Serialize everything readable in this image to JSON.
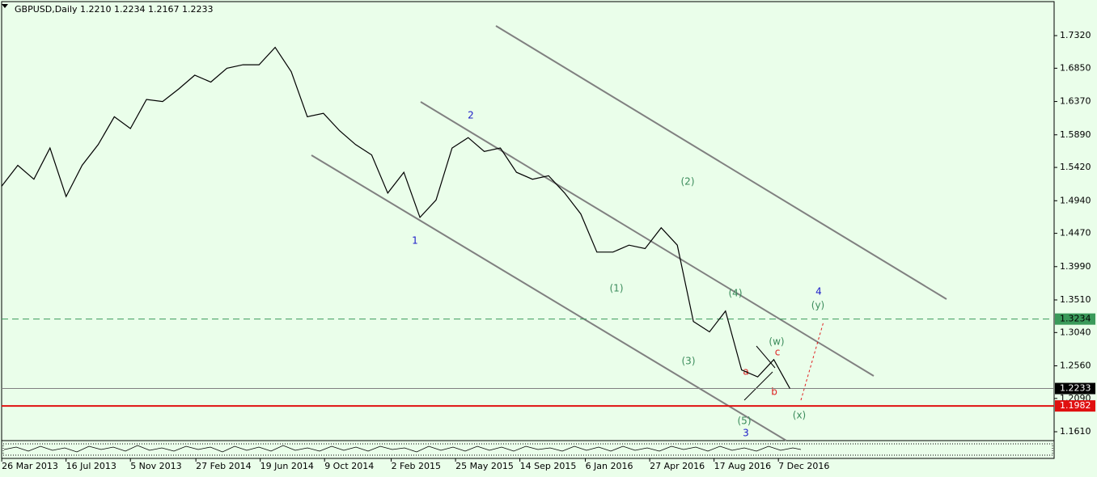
{
  "chart_data": {
    "type": "line",
    "title": "GBPUSD,Daily  1.2210 1.2234 1.2167 1.2233",
    "color": "#000000",
    "x": [
      "2013-03-26",
      "2013-04-23",
      "2013-05-21",
      "2013-06-18",
      "2013-07-16",
      "2013-08-13",
      "2013-09-10",
      "2013-10-08",
      "2013-11-05",
      "2013-12-03",
      "2013-12-31",
      "2014-01-28",
      "2014-02-25",
      "2014-03-25",
      "2014-04-22",
      "2014-05-20",
      "2014-06-17",
      "2014-07-15",
      "2014-08-12",
      "2014-09-09",
      "2014-10-07",
      "2014-11-04",
      "2014-12-02",
      "2014-12-30",
      "2015-01-27",
      "2015-02-24",
      "2015-03-24",
      "2015-04-21",
      "2015-05-19",
      "2015-06-16",
      "2015-07-14",
      "2015-08-11",
      "2015-09-08",
      "2015-10-06",
      "2015-11-03",
      "2015-12-01",
      "2015-12-29",
      "2016-01-26",
      "2016-02-23",
      "2016-03-22",
      "2016-04-19",
      "2016-05-17",
      "2016-06-14",
      "2016-07-12",
      "2016-08-09",
      "2016-09-06",
      "2016-10-04",
      "2016-11-01",
      "2016-11-29",
      "2016-12-27"
    ],
    "values": [
      1.515,
      1.545,
      1.525,
      1.57,
      1.5,
      1.545,
      1.575,
      1.615,
      1.598,
      1.64,
      1.637,
      1.655,
      1.675,
      1.665,
      1.685,
      1.69,
      1.69,
      1.715,
      1.68,
      1.615,
      1.62,
      1.595,
      1.575,
      1.56,
      1.505,
      1.535,
      1.47,
      1.495,
      1.57,
      1.585,
      1.565,
      1.57,
      1.535,
      1.525,
      1.53,
      1.505,
      1.475,
      1.42,
      1.42,
      1.43,
      1.425,
      1.455,
      1.43,
      1.32,
      1.305,
      1.335,
      1.25,
      1.24,
      1.265,
      1.2233
    ],
    "xlim": [
      "2013-03-23",
      "2018-04-01"
    ],
    "xticks": [
      {
        "value": "2013-03-26",
        "label": "26 Mar 2013"
      },
      {
        "value": "2013-07-16",
        "label": "16 Jul 2013"
      },
      {
        "value": "2013-11-05",
        "label": "5 Nov 2013"
      },
      {
        "value": "2014-02-27",
        "label": "27 Feb 2014"
      },
      {
        "value": "2014-06-19",
        "label": "19 Jun 2014"
      },
      {
        "value": "2014-10-09",
        "label": "9 Oct 2014"
      },
      {
        "value": "2015-02-02",
        "label": "2 Feb 2015"
      },
      {
        "value": "2015-05-25",
        "label": "25 May 2015"
      },
      {
        "value": "2015-09-14",
        "label": "14 Sep 2015"
      },
      {
        "value": "2016-01-06",
        "label": "6 Jan 2016"
      },
      {
        "value": "2016-04-27",
        "label": "27 Apr 2016"
      },
      {
        "value": "2016-08-17",
        "label": "17 Aug 2016"
      },
      {
        "value": "2016-12-07",
        "label": "7 Dec 2016"
      }
    ],
    "ylim": [
      1.1482,
      1.781
    ],
    "yticks": [
      {
        "value": 1.732,
        "label": "1.7320"
      },
      {
        "value": 1.685,
        "label": "1.6850"
      },
      {
        "value": 1.637,
        "label": "1.6370"
      },
      {
        "value": 1.589,
        "label": "1.5890"
      },
      {
        "value": 1.542,
        "label": "1.5420"
      },
      {
        "value": 1.494,
        "label": "1.4940"
      },
      {
        "value": 1.447,
        "label": "1.4470"
      },
      {
        "value": 1.399,
        "label": "1.3990"
      },
      {
        "value": 1.351,
        "label": "1.3510"
      },
      {
        "value": 1.304,
        "label": "1.3040"
      },
      {
        "value": 1.256,
        "label": "1.2560"
      },
      {
        "value": 1.209,
        "label": "1.2090"
      },
      {
        "value": 1.161,
        "label": "1.1610"
      }
    ],
    "price_lines": [
      {
        "value": 1.3234,
        "color": "#3a9a5a",
        "dashed": true,
        "text_color": "#000000"
      },
      {
        "value": 1.2233,
        "color": "#808080",
        "dashed": false,
        "text_color": "#ffffff",
        "box": "#000000"
      },
      {
        "value": 1.1982,
        "color": "#e01010",
        "dashed": false,
        "text_color": "#ffffff",
        "box": "#e01010"
      }
    ],
    "annotations": [
      "1",
      "2",
      "3",
      "4",
      "(1)",
      "(2)",
      "(3)",
      "(4)",
      "(5)",
      "(w)",
      "(x)",
      "(y)",
      "a",
      "b",
      "c"
    ]
  }
}
